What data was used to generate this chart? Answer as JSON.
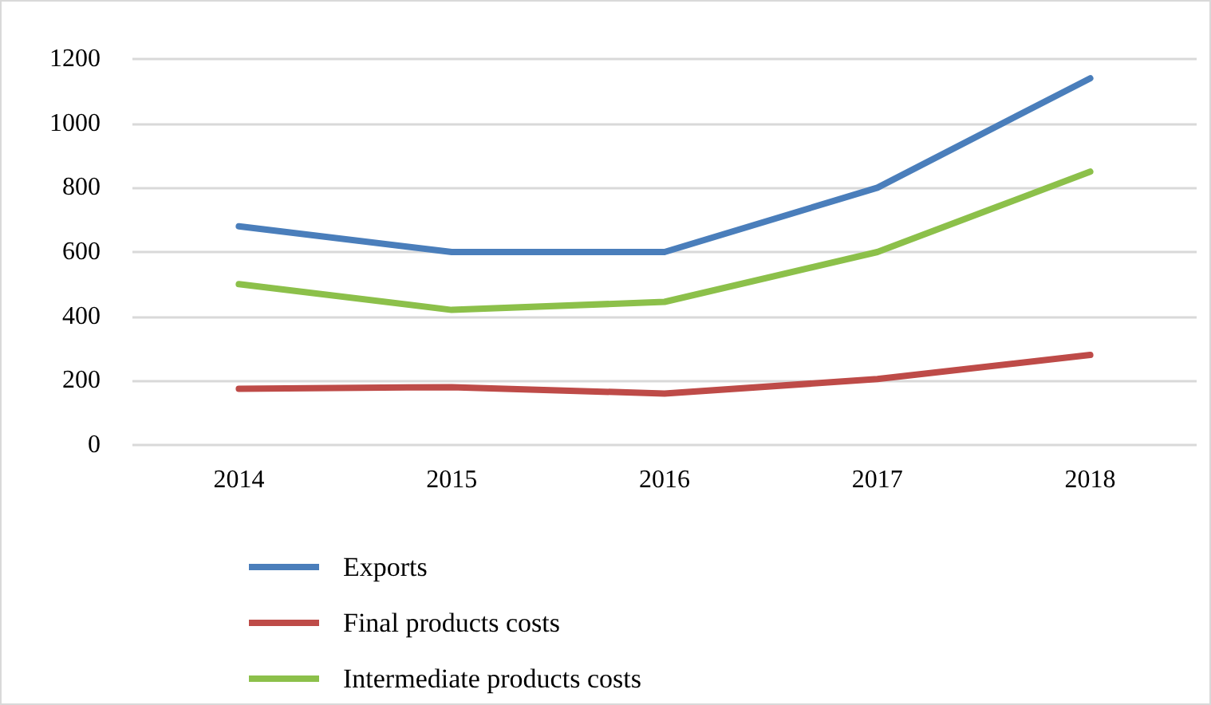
{
  "chart_data": {
    "type": "line",
    "categories": [
      "2014",
      "2015",
      "2016",
      "2017",
      "2018"
    ],
    "series": [
      {
        "name": "Exports",
        "color": "#4a7ebb",
        "values": [
          680,
          600,
          600,
          800,
          1140
        ]
      },
      {
        "name": "Final products costs",
        "color": "#be4b48",
        "values": [
          175,
          180,
          160,
          205,
          280
        ]
      },
      {
        "name": "Intermediate products costs",
        "color": "#8cc04a",
        "values": [
          500,
          420,
          445,
          600,
          850
        ]
      }
    ],
    "ylim": [
      0,
      1200
    ],
    "yticks": [
      0,
      200,
      400,
      600,
      800,
      1000,
      1200
    ],
    "grid": "y",
    "legend": "bottom",
    "marker": "none",
    "line_style": "solid"
  }
}
